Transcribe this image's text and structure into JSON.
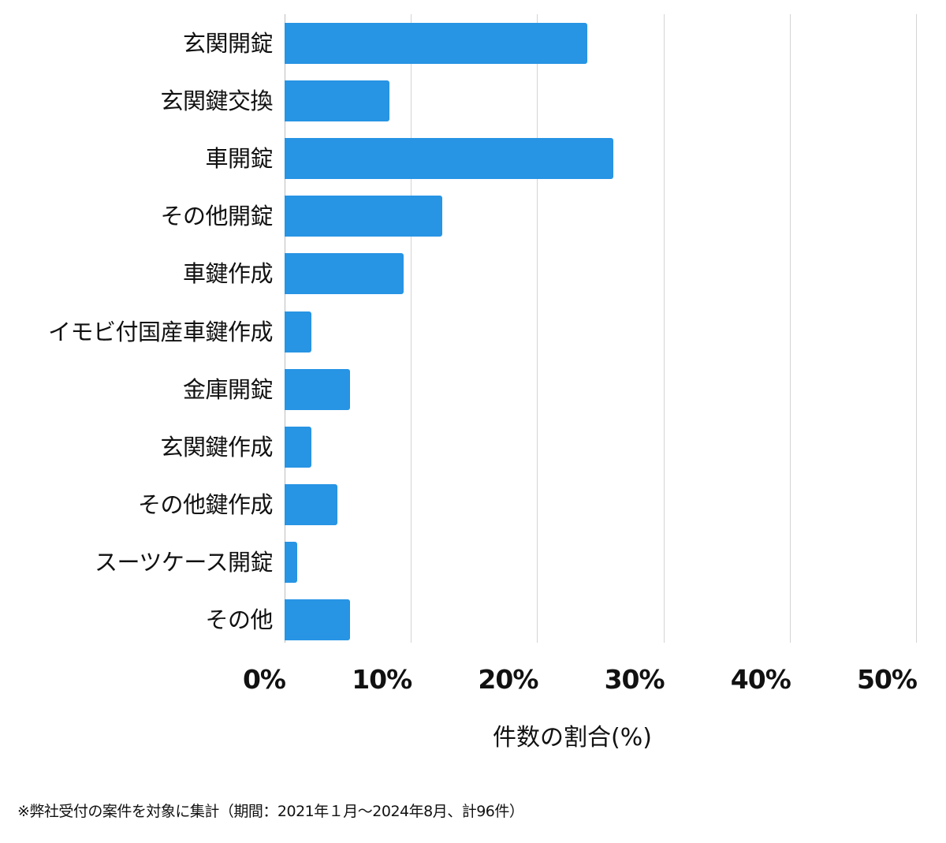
{
  "chart_data": {
    "type": "bar",
    "orientation": "horizontal",
    "title": "",
    "xlabel": "件数の割合(%)",
    "ylabel": "",
    "xlim": [
      0,
      50
    ],
    "x_ticks": [
      "0%",
      "10%",
      "20%",
      "30%",
      "40%",
      "50%"
    ],
    "grid": true,
    "legend": null,
    "bar_color": "#2794e4",
    "categories": [
      "玄関開錠",
      "玄関鍵交換",
      "車開錠",
      "その他開錠",
      "車鍵作成",
      "イモビ付国産車鍵作成",
      "金庫開錠",
      "玄関鍵作成",
      "その他鍵作成",
      "スーツケース開錠",
      "その他"
    ],
    "values": [
      24.0,
      8.3,
      26.0,
      12.5,
      9.4,
      2.1,
      5.2,
      2.1,
      4.2,
      1.0,
      5.2
    ],
    "counts_estimated": [
      23,
      8,
      25,
      12,
      9,
      2,
      5,
      2,
      4,
      1,
      5
    ],
    "total_count": 96,
    "footnote": "※弊社受付の案件を対象に集計（期間：2021年１月〜2024年8月、計96件）"
  }
}
